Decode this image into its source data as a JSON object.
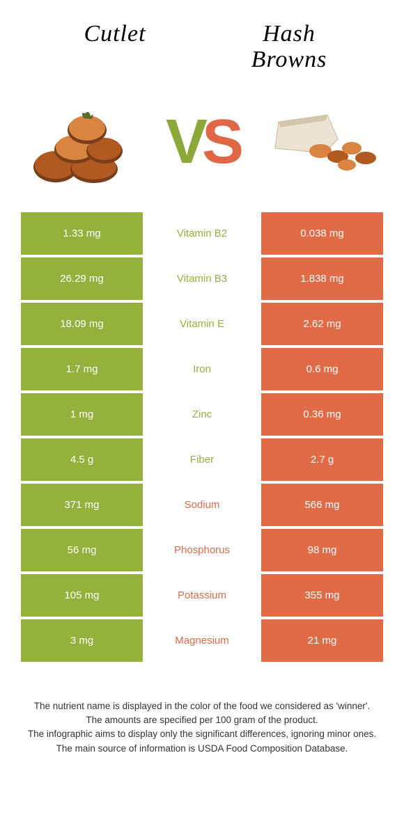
{
  "colors": {
    "green": "#94b13c",
    "orange": "#e16a47",
    "brown_dark": "#7a3e1a",
    "brown_mid": "#b05a22",
    "brown_light": "#d98440",
    "bag": "#ede3d5",
    "herb": "#5a6b2a"
  },
  "titles": {
    "left": "Cutlet",
    "right_line1": "Hash",
    "right_line2": "Browns"
  },
  "vs": {
    "v": "V",
    "s": "S"
  },
  "rows": [
    {
      "left": "1.33 mg",
      "mid": "Vitamin B2",
      "right": "0.038 mg",
      "winner": "left"
    },
    {
      "left": "26.29 mg",
      "mid": "Vitamin B3",
      "right": "1.838 mg",
      "winner": "left"
    },
    {
      "left": "18.09 mg",
      "mid": "Vitamin E",
      "right": "2.62 mg",
      "winner": "left"
    },
    {
      "left": "1.7 mg",
      "mid": "Iron",
      "right": "0.6 mg",
      "winner": "left"
    },
    {
      "left": "1 mg",
      "mid": "Zinc",
      "right": "0.36 mg",
      "winner": "left"
    },
    {
      "left": "4.5 g",
      "mid": "Fiber",
      "right": "2.7 g",
      "winner": "left"
    },
    {
      "left": "371 mg",
      "mid": "Sodium",
      "right": "566 mg",
      "winner": "right"
    },
    {
      "left": "56 mg",
      "mid": "Phosphorus",
      "right": "98 mg",
      "winner": "right"
    },
    {
      "left": "105 mg",
      "mid": "Potassium",
      "right": "355 mg",
      "winner": "right"
    },
    {
      "left": "3 mg",
      "mid": "Magnesium",
      "right": "21 mg",
      "winner": "right"
    }
  ],
  "footer": {
    "l1": "The nutrient name is displayed in the color of the food we considered as 'winner'.",
    "l2": "The amounts are specified per 100 gram of the product.",
    "l3": "The infographic aims to display only the significant differences, ignoring minor ones.",
    "l4": "The main source of information is USDA Food Composition Database."
  }
}
